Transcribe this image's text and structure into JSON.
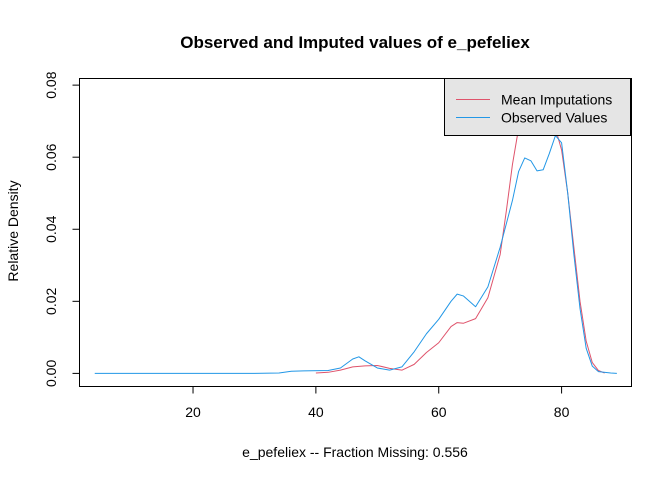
{
  "chart_data": {
    "type": "line",
    "title": "Observed and Imputed values of e_pefeliex",
    "xlabel": "e_pefeliex  --  Fraction Missing: 0.556",
    "ylabel": "Relative Density",
    "xlim": [
      1.6,
      91.3
    ],
    "ylim": [
      -0.0035,
      0.0817
    ],
    "x_ticks": [
      20,
      40,
      60,
      80
    ],
    "x_tick_labels": [
      "20",
      "40",
      "60",
      "80"
    ],
    "y_ticks": [
      0.0,
      0.02,
      0.04,
      0.06,
      0.08
    ],
    "y_tick_labels": [
      "0.00",
      "0.02",
      "0.04",
      "0.06",
      "0.08"
    ],
    "grid": false,
    "legend_position": "top-right",
    "series": [
      {
        "name": "Mean Imputations",
        "color": "#DF536B",
        "points": [
          [
            40,
            0.0001
          ],
          [
            42,
            0.0003
          ],
          [
            44,
            0.0009
          ],
          [
            46,
            0.0018
          ],
          [
            48,
            0.0021
          ],
          [
            50,
            0.0022
          ],
          [
            52,
            0.0014
          ],
          [
            54,
            0.0009
          ],
          [
            56,
            0.0025
          ],
          [
            58,
            0.0058
          ],
          [
            60,
            0.0085
          ],
          [
            62,
            0.013
          ],
          [
            63,
            0.0141
          ],
          [
            64,
            0.0139
          ],
          [
            66,
            0.0152
          ],
          [
            68,
            0.021
          ],
          [
            70,
            0.033
          ],
          [
            71,
            0.045
          ],
          [
            72,
            0.058
          ],
          [
            73,
            0.068
          ],
          [
            74,
            0.076
          ],
          [
            75,
            0.078
          ],
          [
            76,
            0.077
          ],
          [
            77,
            0.074
          ],
          [
            78,
            0.072
          ],
          [
            79,
            0.068
          ],
          [
            80,
            0.062
          ],
          [
            81,
            0.05
          ],
          [
            82,
            0.035
          ],
          [
            83,
            0.02
          ],
          [
            84,
            0.009
          ],
          [
            85,
            0.003
          ],
          [
            86,
            0.0008
          ],
          [
            87,
            0.0001
          ]
        ]
      },
      {
        "name": "Observed Values",
        "color": "#2297E6",
        "points": [
          [
            4,
            0.0
          ],
          [
            10,
            0.0
          ],
          [
            20,
            0.0
          ],
          [
            30,
            0.0
          ],
          [
            34,
            0.0001
          ],
          [
            36,
            0.0006
          ],
          [
            38,
            0.0007
          ],
          [
            42,
            0.0008
          ],
          [
            44,
            0.0015
          ],
          [
            46,
            0.004
          ],
          [
            47,
            0.0046
          ],
          [
            48,
            0.0035
          ],
          [
            50,
            0.0015
          ],
          [
            52,
            0.0009
          ],
          [
            54,
            0.0018
          ],
          [
            56,
            0.006
          ],
          [
            58,
            0.011
          ],
          [
            60,
            0.015
          ],
          [
            62,
            0.02
          ],
          [
            63,
            0.022
          ],
          [
            64,
            0.0215
          ],
          [
            66,
            0.0185
          ],
          [
            68,
            0.024
          ],
          [
            70,
            0.035
          ],
          [
            72,
            0.048
          ],
          [
            73,
            0.056
          ],
          [
            74,
            0.0598
          ],
          [
            75,
            0.059
          ],
          [
            76,
            0.0562
          ],
          [
            77,
            0.0565
          ],
          [
            78,
            0.061
          ],
          [
            79,
            0.066
          ],
          [
            80,
            0.064
          ],
          [
            81,
            0.05
          ],
          [
            82,
            0.033
          ],
          [
            83,
            0.018
          ],
          [
            84,
            0.007
          ],
          [
            85,
            0.002
          ],
          [
            86,
            0.0005
          ],
          [
            88,
            0.0001
          ],
          [
            89,
            0.0
          ]
        ]
      }
    ]
  }
}
